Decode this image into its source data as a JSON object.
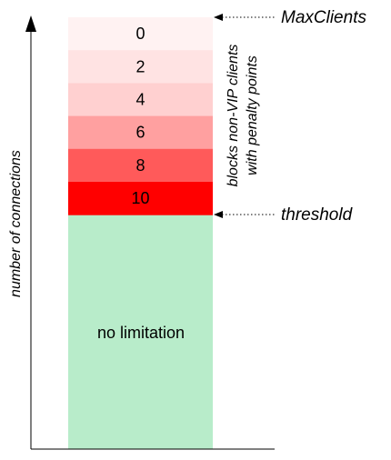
{
  "axis": {
    "label": "number of connections"
  },
  "bands": [
    {
      "label": "0",
      "color": "#fff2f2"
    },
    {
      "label": "2",
      "color": "#ffe3e3"
    },
    {
      "label": "4",
      "color": "#ffd0d0"
    },
    {
      "label": "6",
      "color": "#ffa0a0"
    },
    {
      "label": "8",
      "color": "#ff5a5a"
    },
    {
      "label": "10",
      "color": "#ff0000"
    }
  ],
  "base": {
    "label": "no limitation",
    "color": "#b8ecca"
  },
  "markers": {
    "max": "MaxClients",
    "threshold": "threshold"
  },
  "side_note": {
    "line1": "blocks non-VIP clients",
    "line2": "with penalty points"
  }
}
